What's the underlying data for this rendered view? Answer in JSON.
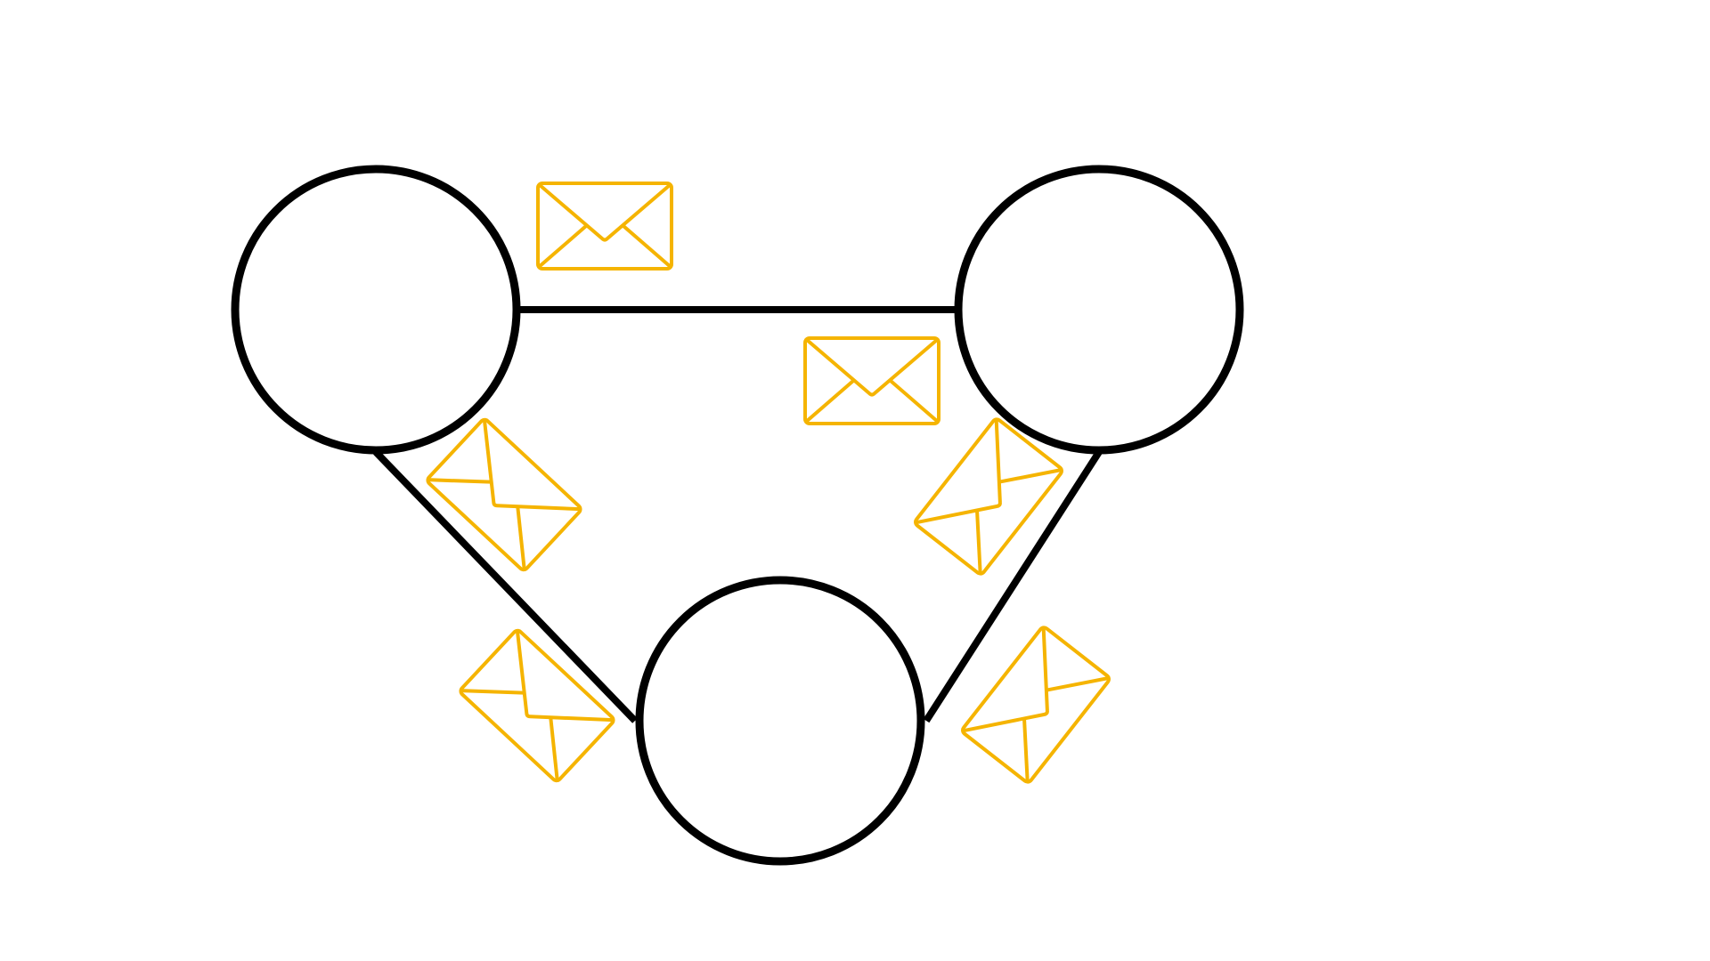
{
  "diagram": {
    "type": "network-message-passing",
    "nodes": [
      {
        "id": "node-top-left"
      },
      {
        "id": "node-top-right"
      },
      {
        "id": "node-bottom"
      }
    ],
    "edges": [
      {
        "from": "node-top-left",
        "to": "node-top-right"
      },
      {
        "from": "node-top-left",
        "to": "node-bottom"
      },
      {
        "from": "node-top-right",
        "to": "node-bottom"
      }
    ],
    "messages": [
      {
        "icon": "envelope-icon",
        "edge": "top-left-to-top-right"
      },
      {
        "icon": "envelope-icon",
        "edge": "top-right-to-top-left"
      },
      {
        "icon": "envelope-icon",
        "edge": "top-left-to-bottom"
      },
      {
        "icon": "envelope-icon",
        "edge": "bottom-to-top-left"
      },
      {
        "icon": "envelope-icon",
        "edge": "top-right-to-bottom"
      },
      {
        "icon": "envelope-icon",
        "edge": "bottom-to-top-right"
      }
    ],
    "colors": {
      "node_stroke": "#000000",
      "edge_stroke": "#000000",
      "message_stroke": "#f5b400",
      "background": "#ffffff"
    }
  }
}
